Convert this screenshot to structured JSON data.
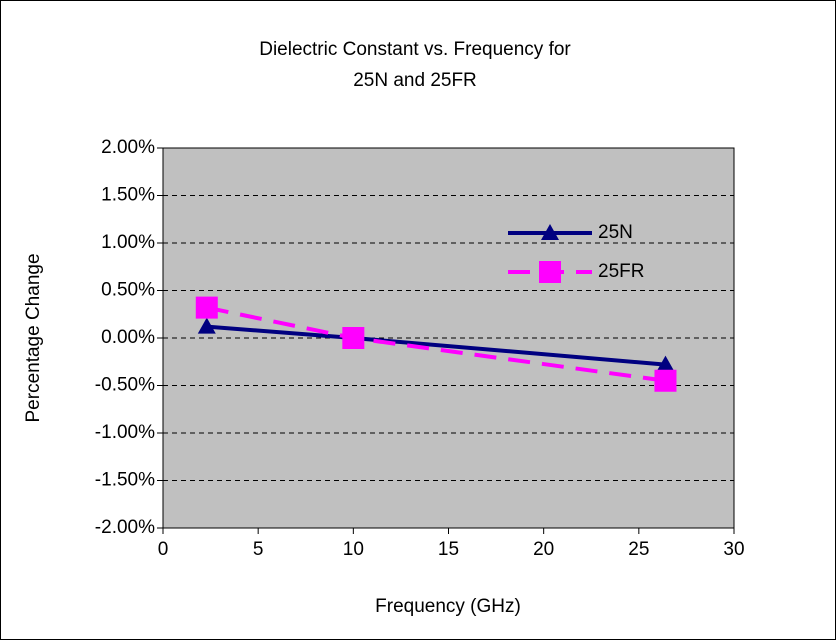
{
  "chart_data": {
    "type": "line",
    "title": [
      "Dielectric Constant vs. Frequency for",
      "25N and 25FR"
    ],
    "xlabel": "Frequency (GHz)",
    "ylabel": "Percentage Change",
    "x": [
      2.3,
      10,
      26.4
    ],
    "series": [
      {
        "name": "25N",
        "color": "#000080",
        "marker": "triangle",
        "dashed": false,
        "values": [
          0.12,
          0,
          -0.28
        ]
      },
      {
        "name": "25FR",
        "color": "#ff00ff",
        "marker": "square",
        "dashed": true,
        "values": [
          0.32,
          0,
          -0.45
        ]
      }
    ],
    "xlim": [
      0,
      30
    ],
    "xticks": [
      0,
      5,
      10,
      15,
      20,
      25,
      30
    ],
    "ylim": [
      -2,
      2
    ],
    "yticks": [
      {
        "value": -2,
        "label": "-2.00%"
      },
      {
        "value": -1.5,
        "label": "-1.50%"
      },
      {
        "value": -1,
        "label": "-1.00%"
      },
      {
        "value": -0.5,
        "label": "-0.50%"
      },
      {
        "value": 0,
        "label": "0.00%"
      },
      {
        "value": 0.5,
        "label": "0.50%"
      },
      {
        "value": 1,
        "label": "1.00%"
      },
      {
        "value": 1.5,
        "label": "1.50%"
      },
      {
        "value": 2,
        "label": "2.00%"
      }
    ],
    "grid": true
  }
}
